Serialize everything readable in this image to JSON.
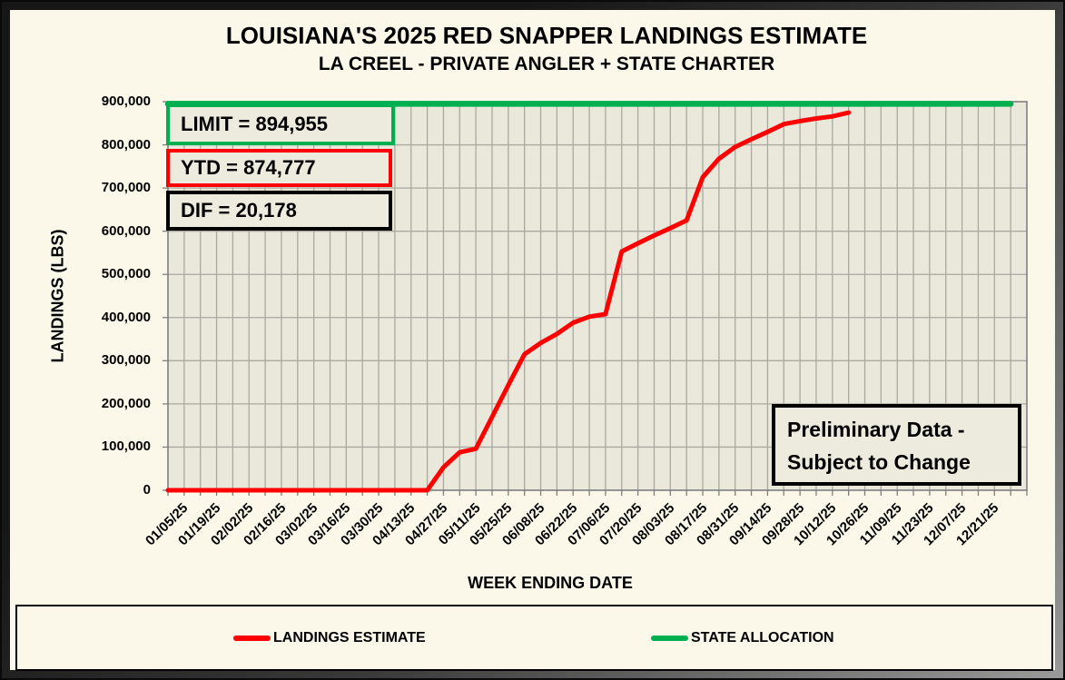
{
  "header": {
    "title": "LOUISIANA'S 2025 RED SNAPPER LANDINGS ESTIMATE",
    "subtitle": "LA CREEL - PRIVATE ANGLER + STATE CHARTER"
  },
  "chart_data": {
    "type": "line",
    "title": "LOUISIANA'S 2025 RED SNAPPER LANDINGS ESTIMATE",
    "subtitle": "LA CREEL - PRIVATE ANGLER + STATE CHARTER",
    "xlabel": "WEEK ENDING DATE",
    "ylabel": "LANDINGS (LBS)",
    "ylim": [
      0,
      900000
    ],
    "ytick_step": 100000,
    "y_tick_labels": [
      "0",
      "100,000",
      "200,000",
      "300,000",
      "400,000",
      "500,000",
      "600,000",
      "700,000",
      "800,000",
      "900,000"
    ],
    "x_tick_labels": [
      "01/05/25",
      "01/19/25",
      "02/02/25",
      "02/16/25",
      "03/02/25",
      "03/16/25",
      "03/30/25",
      "04/13/25",
      "04/27/25",
      "05/11/25",
      "05/25/25",
      "06/08/25",
      "06/22/25",
      "07/06/25",
      "07/20/25",
      "08/03/25",
      "08/17/25",
      "08/31/25",
      "09/14/25",
      "09/28/25",
      "10/12/25",
      "10/26/25",
      "11/09/25",
      "11/23/25",
      "12/07/25",
      "12/21/25"
    ],
    "x_weeks_total": 53,
    "x_first_label_week": 1,
    "x_label_every_weeks": 2,
    "grid": true,
    "plot_bg_color": "#EAE8DB",
    "gridline_color": "#A9A9A0",
    "axis_color": "#7F7F7F",
    "series": [
      {
        "name": "LANDINGS ESTIMATE",
        "color": "#FE0000",
        "start_week": 0,
        "values": [
          0,
          0,
          0,
          0,
          0,
          0,
          0,
          0,
          0,
          0,
          0,
          0,
          0,
          0,
          0,
          0,
          0,
          53000,
          88000,
          96000,
          170000,
          243000,
          315000,
          341000,
          362000,
          388000,
          402000,
          408000,
          553000,
          572000,
          590000,
          607000,
          625000,
          725000,
          768000,
          795000,
          813000,
          830000,
          848000,
          855000,
          861000,
          866000,
          874777
        ]
      },
      {
        "name": "STATE ALLOCATION",
        "color": "#00B050",
        "constant_value": 894955,
        "start_week": 0,
        "end_week": 52
      }
    ],
    "annotations": {
      "limit_box": {
        "text": "LIMIT = 894,955",
        "border_color": "#00B050"
      },
      "ytd_box": {
        "text": "YTD = 874,777",
        "border_color": "#FE0000"
      },
      "dif_box": {
        "text": "DIF = 20,178",
        "border_color": "#000000"
      },
      "preliminary_box": {
        "line1": "Preliminary Data -",
        "line2": "Subject to Change",
        "border_color": "#000000"
      }
    },
    "legend": {
      "position": "bottom",
      "entries": [
        {
          "label": "LANDINGS ESTIMATE",
          "color": "#FE0000"
        },
        {
          "label": "STATE ALLOCATION",
          "color": "#00B050"
        }
      ]
    }
  }
}
